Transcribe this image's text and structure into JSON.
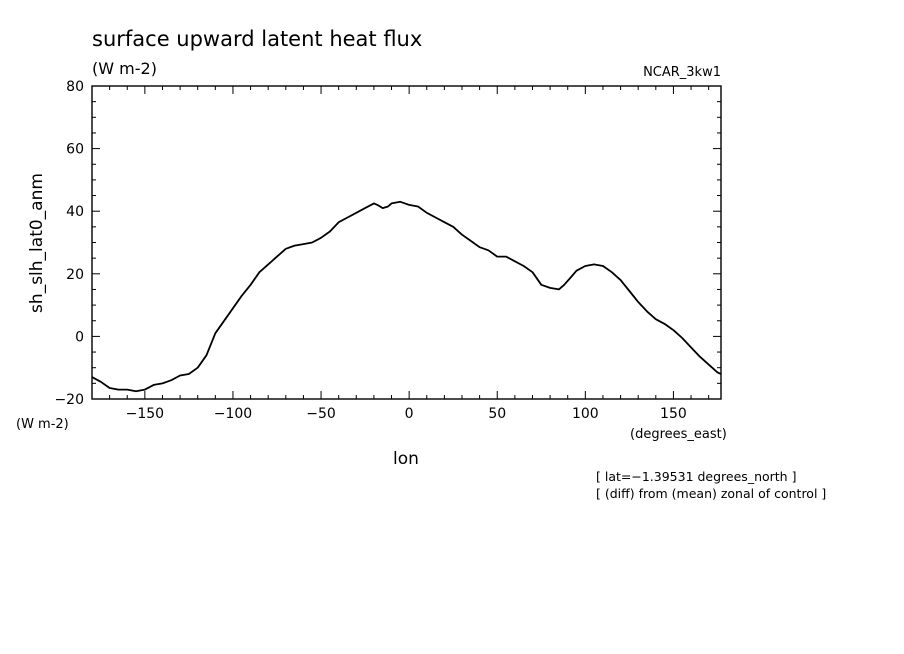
{
  "chart_data": {
    "type": "line",
    "title": "surface upward latent heat flux",
    "subtitle": "(W m-2)",
    "model": "NCAR_3kw1",
    "ylabel": "sh_slh_lat0_anm",
    "yunits": "(W m-2)",
    "xlabel": "lon",
    "xunits": "(degrees_east)",
    "xlim": [
      -180,
      177
    ],
    "ylim": [
      -20,
      80
    ],
    "xticks": [
      -150,
      -100,
      -50,
      0,
      50,
      100,
      150
    ],
    "xtick_labels": [
      "−150",
      "−100",
      "−50",
      "0",
      "50",
      "100",
      "150"
    ],
    "yticks": [
      -20,
      0,
      20,
      40,
      60,
      80
    ],
    "ytick_labels": [
      "−20",
      "0",
      "20",
      "40",
      "60",
      "80"
    ],
    "annotations": [
      "[ lat=−1.39531 degrees_north ]",
      "[ (diff) from (mean) zonal of control ]"
    ],
    "grid": false,
    "series": [
      {
        "x": [
          -180,
          -175,
          -170,
          -165,
          -160,
          -155,
          -150,
          -145,
          -140,
          -135,
          -130,
          -125,
          -120,
          -115,
          -110,
          -105,
          -100,
          -95,
          -90,
          -85,
          -80,
          -75,
          -70,
          -65,
          -60,
          -55,
          -50,
          -45,
          -40,
          -35,
          -30,
          -25,
          -20,
          -18,
          -15,
          -12,
          -10,
          -5,
          0,
          5,
          10,
          15,
          20,
          25,
          30,
          35,
          40,
          45,
          50,
          55,
          60,
          65,
          70,
          75,
          80,
          85,
          88,
          92,
          95,
          100,
          105,
          110,
          115,
          120,
          125,
          130,
          135,
          140,
          145,
          150,
          155,
          160,
          165,
          170,
          175,
          177
        ],
        "y": [
          -13,
          -14.5,
          -16.5,
          -17,
          -17,
          -17.5,
          -17,
          -15.5,
          -15,
          -14,
          -12.5,
          -12,
          -10,
          -6,
          1,
          5,
          9,
          13,
          16.5,
          20.5,
          23,
          25.5,
          28,
          29,
          29.5,
          30,
          31.5,
          33.5,
          36.5,
          38,
          39.5,
          41,
          42.5,
          42,
          41,
          41.5,
          42.5,
          43,
          42,
          41.5,
          39.5,
          38,
          36.5,
          35,
          32.5,
          30.5,
          28.5,
          27.5,
          25.5,
          25.5,
          24,
          22.5,
          20.5,
          16.5,
          15.5,
          15,
          16.5,
          19,
          21,
          22.5,
          23,
          22.5,
          20.5,
          18,
          14.5,
          11,
          8,
          5.5,
          4,
          2,
          -0.5,
          -3.5,
          -6.5,
          -9,
          -11.5,
          -12
        ]
      }
    ]
  }
}
